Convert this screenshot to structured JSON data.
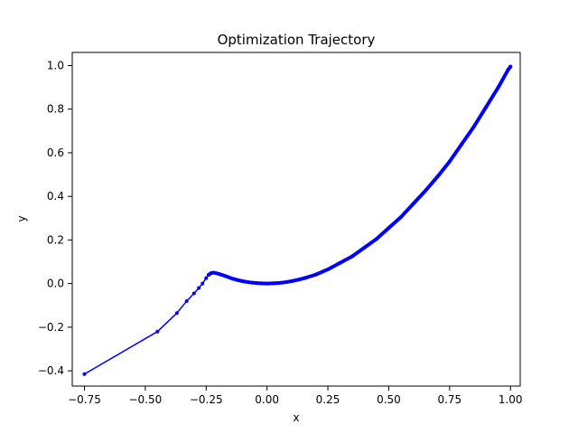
{
  "chart_data": {
    "type": "line",
    "title": "Optimization Trajectory",
    "xlabel": "x",
    "ylabel": "y",
    "xlim": [
      -0.8,
      1.04
    ],
    "ylim": [
      -0.47,
      1.06
    ],
    "xticks": [
      -0.75,
      -0.5,
      -0.25,
      0.0,
      0.25,
      0.5,
      0.75,
      1.0
    ],
    "xtick_labels": [
      "−0.75",
      "−0.50",
      "−0.25",
      "0.00",
      "0.25",
      "0.50",
      "0.75",
      "1.00"
    ],
    "yticks": [
      -0.4,
      -0.2,
      0.0,
      0.2,
      0.4,
      0.6,
      0.8,
      1.0
    ],
    "ytick_labels": [
      "−0.4",
      "−0.2",
      "0.0",
      "0.2",
      "0.4",
      "0.6",
      "0.8",
      "1.0"
    ],
    "grid": false,
    "series": [
      {
        "color": "#0000ff",
        "marker": "dot",
        "x": [
          -0.75,
          -0.45,
          -0.37,
          -0.33,
          -0.3,
          -0.28,
          -0.265,
          -0.25,
          -0.24,
          -0.23,
          -0.22,
          -0.21,
          -0.2,
          -0.18,
          -0.16,
          -0.14,
          -0.12,
          -0.1,
          -0.08,
          -0.06,
          -0.04,
          -0.02,
          0.0,
          0.02,
          0.04,
          0.06,
          0.08,
          0.1,
          0.13,
          0.16,
          0.2,
          0.25,
          0.3,
          0.35,
          0.4,
          0.45,
          0.5,
          0.55,
          0.6,
          0.65,
          0.7,
          0.75,
          0.8,
          0.85,
          0.9,
          0.95,
          0.99,
          1.0
        ],
        "y": [
          -0.415,
          -0.22,
          -0.135,
          -0.08,
          -0.045,
          -0.02,
          0.0,
          0.025,
          0.04,
          0.048,
          0.05,
          0.048,
          0.045,
          0.038,
          0.03,
          0.022,
          0.016,
          0.011,
          0.007,
          0.004,
          0.002,
          0.001,
          0.0,
          0.001,
          0.002,
          0.004,
          0.007,
          0.011,
          0.018,
          0.027,
          0.041,
          0.065,
          0.095,
          0.125,
          0.165,
          0.205,
          0.255,
          0.305,
          0.365,
          0.425,
          0.49,
          0.56,
          0.64,
          0.72,
          0.81,
          0.9,
          0.98,
          0.995
        ]
      }
    ]
  }
}
